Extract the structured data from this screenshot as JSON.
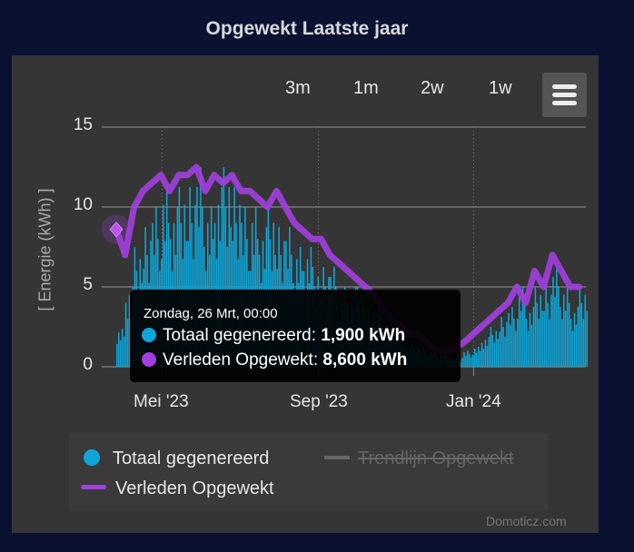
{
  "title": "Opgewekt Laatste jaar",
  "range_buttons": [
    "3m",
    "1m",
    "2w",
    "1w"
  ],
  "menu_icon": "hamburger-icon",
  "credit": "Domoticz.com",
  "colors": {
    "background": "#0b1231",
    "panel": "#353535",
    "totaal": "#0ea5d8",
    "verleden": "#a23fe0",
    "trend": "#666666"
  },
  "tooltip": {
    "header": "Zondag, 26 Mrt, 00:00",
    "rows": [
      {
        "label": "Totaal gegenereerd: ",
        "value": "1,900 kWh"
      },
      {
        "label": "Verleden Opgewekt: ",
        "value": "8,600 kWh"
      }
    ]
  },
  "legend": [
    {
      "name": "Totaal gegenereerd",
      "symbol": "circle",
      "visible": true
    },
    {
      "name": "Trendlijn Opgewekt",
      "symbol": "line",
      "visible": false
    },
    {
      "name": "Verleden Opgewekt",
      "symbol": "line",
      "visible": true
    }
  ],
  "chart_data": {
    "type": "bar",
    "ylabel": "[ Energie (kWh) ]",
    "ylim": [
      0,
      15
    ],
    "yticks": [
      "0",
      "5",
      "10",
      "15"
    ],
    "xticks": [
      {
        "label": "Mei '23",
        "date": "2023-05-01"
      },
      {
        "label": "Sep '23",
        "date": "2023-09-01"
      },
      {
        "label": "Jan '24",
        "date": "2024-01-01"
      }
    ],
    "xrange": [
      "2023-03-26",
      "2024-03-24"
    ],
    "grid": true,
    "legend_position": "bottom",
    "series": [
      {
        "name": "Totaal gegenereerd",
        "type": "bar",
        "points": [
          [
            "2023-03-26",
            1.9
          ],
          [
            "2023-04-02",
            4
          ],
          [
            "2023-04-09",
            6
          ],
          [
            "2023-04-16",
            7
          ],
          [
            "2023-04-23",
            8
          ],
          [
            "2023-04-30",
            9
          ],
          [
            "2023-05-07",
            8
          ],
          [
            "2023-05-14",
            9
          ],
          [
            "2023-05-21",
            9
          ],
          [
            "2023-05-28",
            10
          ],
          [
            "2023-06-04",
            8
          ],
          [
            "2023-06-11",
            9
          ],
          [
            "2023-06-18",
            10
          ],
          [
            "2023-06-25",
            9
          ],
          [
            "2023-07-02",
            8
          ],
          [
            "2023-07-09",
            8
          ],
          [
            "2023-07-16",
            7
          ],
          [
            "2023-07-23",
            8
          ],
          [
            "2023-07-30",
            7
          ],
          [
            "2023-08-06",
            7
          ],
          [
            "2023-08-13",
            6
          ],
          [
            "2023-08-20",
            6
          ],
          [
            "2023-08-27",
            5
          ],
          [
            "2023-09-03",
            5
          ],
          [
            "2023-09-10",
            5
          ],
          [
            "2023-09-17",
            4
          ],
          [
            "2023-09-24",
            4
          ],
          [
            "2023-10-01",
            4
          ],
          [
            "2023-10-08",
            3
          ],
          [
            "2023-10-15",
            3
          ],
          [
            "2023-10-22",
            2
          ],
          [
            "2023-10-29",
            2
          ],
          [
            "2023-11-05",
            1.5
          ],
          [
            "2023-11-12",
            1.2
          ],
          [
            "2023-11-19",
            1
          ],
          [
            "2023-11-26",
            0.8
          ],
          [
            "2023-12-03",
            0.6
          ],
          [
            "2023-12-10",
            0.5
          ],
          [
            "2023-12-17",
            0.5
          ],
          [
            "2023-12-24",
            0.8
          ],
          [
            "2023-12-31",
            1
          ],
          [
            "2024-01-07",
            1.5
          ],
          [
            "2024-01-14",
            2
          ],
          [
            "2024-01-21",
            2.5
          ],
          [
            "2024-01-28",
            3
          ],
          [
            "2024-02-04",
            4
          ],
          [
            "2024-02-11",
            3
          ],
          [
            "2024-02-18",
            4
          ],
          [
            "2024-02-25",
            4
          ],
          [
            "2024-03-03",
            5
          ],
          [
            "2024-03-10",
            4
          ],
          [
            "2024-03-17",
            3
          ],
          [
            "2024-03-24",
            4
          ]
        ]
      },
      {
        "name": "Verleden Opgewekt",
        "type": "line",
        "points": [
          [
            "2023-03-26",
            8.6
          ],
          [
            "2023-04-02",
            7
          ],
          [
            "2023-04-09",
            10
          ],
          [
            "2023-04-16",
            11
          ],
          [
            "2023-04-23",
            11.5
          ],
          [
            "2023-04-30",
            12
          ],
          [
            "2023-05-07",
            11
          ],
          [
            "2023-05-14",
            12
          ],
          [
            "2023-05-21",
            12
          ],
          [
            "2023-05-28",
            12.5
          ],
          [
            "2023-06-04",
            11
          ],
          [
            "2023-06-11",
            12
          ],
          [
            "2023-06-18",
            11.5
          ],
          [
            "2023-06-25",
            12
          ],
          [
            "2023-07-02",
            11
          ],
          [
            "2023-07-09",
            11
          ],
          [
            "2023-07-16",
            10.5
          ],
          [
            "2023-07-23",
            10
          ],
          [
            "2023-07-30",
            11
          ],
          [
            "2023-08-06",
            10
          ],
          [
            "2023-08-13",
            9
          ],
          [
            "2023-08-20",
            8.5
          ],
          [
            "2023-08-27",
            8
          ],
          [
            "2023-09-03",
            8
          ],
          [
            "2023-09-10",
            7
          ],
          [
            "2023-09-17",
            6.5
          ],
          [
            "2023-09-24",
            6
          ],
          [
            "2023-10-01",
            5.5
          ],
          [
            "2023-10-08",
            5
          ],
          [
            "2023-10-15",
            4.5
          ],
          [
            "2023-10-22",
            3.5
          ],
          [
            "2023-10-29",
            3
          ],
          [
            "2023-11-05",
            2.5
          ],
          [
            "2023-11-12",
            2
          ],
          [
            "2023-11-19",
            2
          ],
          [
            "2023-11-26",
            1.5
          ],
          [
            "2023-12-03",
            1
          ],
          [
            "2023-12-10",
            1
          ],
          [
            "2023-12-17",
            1.2
          ],
          [
            "2023-12-24",
            1.5
          ],
          [
            "2023-12-31",
            2
          ],
          [
            "2024-01-07",
            2.5
          ],
          [
            "2024-01-14",
            3
          ],
          [
            "2024-01-21",
            3.5
          ],
          [
            "2024-01-28",
            4
          ],
          [
            "2024-02-04",
            5
          ],
          [
            "2024-02-11",
            4
          ],
          [
            "2024-02-18",
            6
          ],
          [
            "2024-02-25",
            5
          ],
          [
            "2024-03-03",
            7
          ],
          [
            "2024-03-10",
            6
          ],
          [
            "2024-03-17",
            5
          ],
          [
            "2024-03-24",
            5
          ]
        ]
      }
    ]
  }
}
